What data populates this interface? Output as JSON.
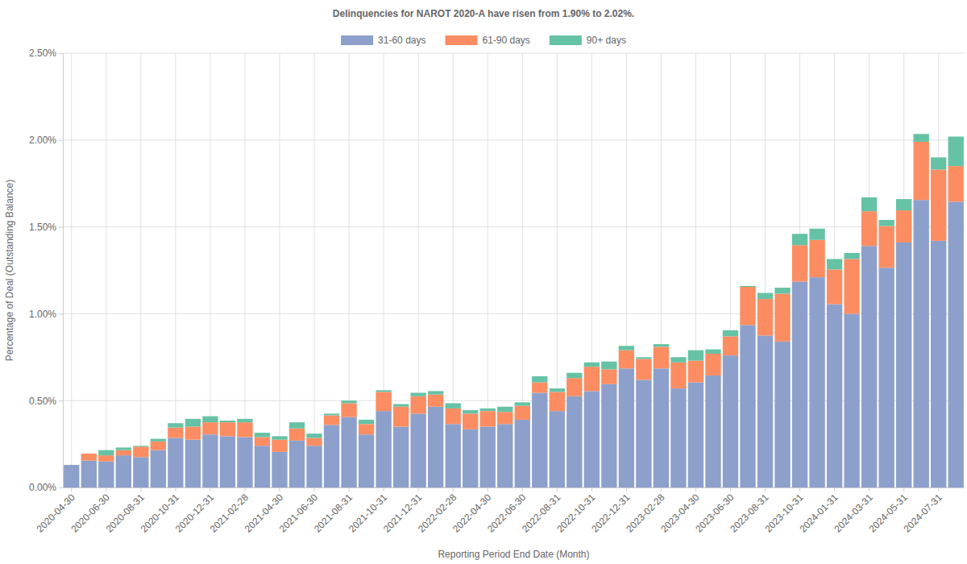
{
  "chart_data": {
    "type": "bar",
    "stacked": true,
    "grid": true,
    "legend": "top",
    "title": "Delinquencies for NAROT 2020-A have risen from 1.90% to 2.02%.",
    "x_label": "Reporting Period End Date (Month)",
    "y_label": "Percentage of Deal (Outstanding Balance)",
    "categories": [
      "2020-04-30",
      null,
      "2020-06-30",
      null,
      "2020-08-31",
      null,
      "2020-10-31",
      null,
      "2020-12-31",
      null,
      "2021-02-28",
      null,
      "2021-04-30",
      null,
      "2021-06-30",
      null,
      "2021-08-31",
      null,
      "2021-10-31",
      null,
      "2021-12-31",
      null,
      "2022-02-28",
      null,
      "2022-04-30",
      null,
      "2022-06-30",
      null,
      "2022-08-31",
      null,
      "2022-10-31",
      null,
      "2022-12-31",
      null,
      "2023-02-28",
      null,
      "2023-04-30",
      null,
      "2023-06-30",
      null,
      "2023-08-31",
      null,
      "2023-10-31",
      null,
      "2024-01-31",
      null,
      "2024-03-31",
      null,
      "2024-05-31",
      null,
      "2024-07-31",
      null
    ],
    "ylim": [
      0,
      2.5
    ],
    "yticks": [
      {
        "value": 0,
        "label": "0.00%"
      },
      {
        "value": 0.5,
        "label": "0.50%"
      },
      {
        "value": 1,
        "label": "1.00%"
      },
      {
        "value": 1.5,
        "label": "1.50%"
      },
      {
        "value": 2,
        "label": "2.00%"
      },
      {
        "value": 2.5,
        "label": "2.50%"
      }
    ],
    "series": [
      {
        "name": "31-60 days",
        "color": "#8da0cb",
        "values": [
          0.13,
          0.155,
          0.15,
          0.185,
          0.175,
          0.215,
          0.285,
          0.275,
          0.305,
          0.295,
          0.29,
          0.24,
          0.205,
          0.27,
          0.24,
          0.36,
          0.405,
          0.305,
          0.44,
          0.35,
          0.425,
          0.465,
          0.365,
          0.335,
          0.35,
          0.365,
          0.39,
          0.545,
          0.44,
          0.525,
          0.555,
          0.595,
          0.685,
          0.62,
          0.685,
          0.57,
          0.605,
          0.645,
          0.76,
          0.935,
          0.875,
          0.84,
          1.185,
          1.21,
          1.055,
          1.0,
          1.39,
          1.265,
          1.41,
          1.655,
          1.42,
          1.645
        ]
      },
      {
        "name": "61-90 days",
        "color": "#fc8d62",
        "values": [
          0,
          0.04,
          0.035,
          0.03,
          0.06,
          0.05,
          0.06,
          0.075,
          0.07,
          0.08,
          0.085,
          0.05,
          0.07,
          0.07,
          0.045,
          0.055,
          0.08,
          0.06,
          0.11,
          0.115,
          0.1,
          0.07,
          0.09,
          0.09,
          0.09,
          0.07,
          0.08,
          0.06,
          0.11,
          0.105,
          0.14,
          0.085,
          0.105,
          0.12,
          0.125,
          0.15,
          0.125,
          0.125,
          0.11,
          0.22,
          0.21,
          0.275,
          0.21,
          0.215,
          0.2,
          0.315,
          0.2,
          0.24,
          0.185,
          0.335,
          0.41,
          0.205
        ]
      },
      {
        "name": "90+ days",
        "color": "#66c2a5",
        "values": [
          0,
          0,
          0.03,
          0.015,
          0.005,
          0.015,
          0.025,
          0.045,
          0.035,
          0.01,
          0.02,
          0.025,
          0.02,
          0.035,
          0.025,
          0.01,
          0.015,
          0.025,
          0.01,
          0.015,
          0.02,
          0.02,
          0.03,
          0.02,
          0.015,
          0.03,
          0.02,
          0.035,
          0.02,
          0.03,
          0.025,
          0.045,
          0.025,
          0.01,
          0.015,
          0.03,
          0.06,
          0.025,
          0.035,
          0.005,
          0.035,
          0.035,
          0.065,
          0.065,
          0.06,
          0.035,
          0.08,
          0.035,
          0.065,
          0.045,
          0.07,
          0.17
        ]
      }
    ]
  }
}
